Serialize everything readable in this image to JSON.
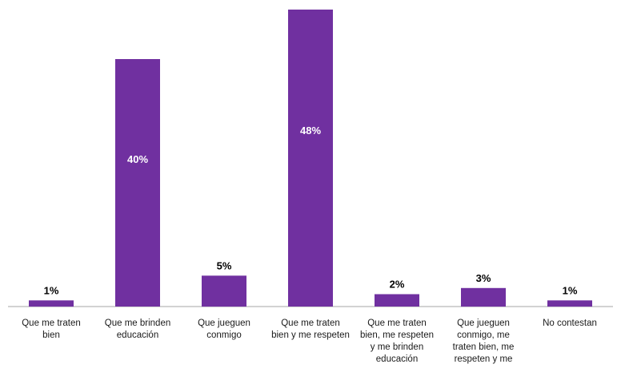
{
  "chart_data": {
    "type": "bar",
    "title": "",
    "xlabel": "",
    "ylabel": "",
    "ylim": [
      0,
      48
    ],
    "grid": false,
    "legend": "none",
    "bar_color": "#7030a0",
    "categories": [
      [
        "Que me traten",
        "bien"
      ],
      [
        "Que me brinden",
        "educación"
      ],
      [
        "Que jueguen",
        "conmigo"
      ],
      [
        "Que me traten",
        "bien y me respeten"
      ],
      [
        "Que me traten",
        "bien, me respeten",
        "y  me brinden",
        "educación"
      ],
      [
        "Que jueguen",
        "conmigo, me",
        "traten bien, me",
        "respeten y me"
      ],
      [
        "No contestan"
      ]
    ],
    "values": [
      1,
      40,
      5,
      48,
      2,
      3,
      1
    ],
    "labels": [
      "1%",
      "40%",
      "5%",
      "48%",
      "2%",
      "3%",
      "1%"
    ]
  }
}
